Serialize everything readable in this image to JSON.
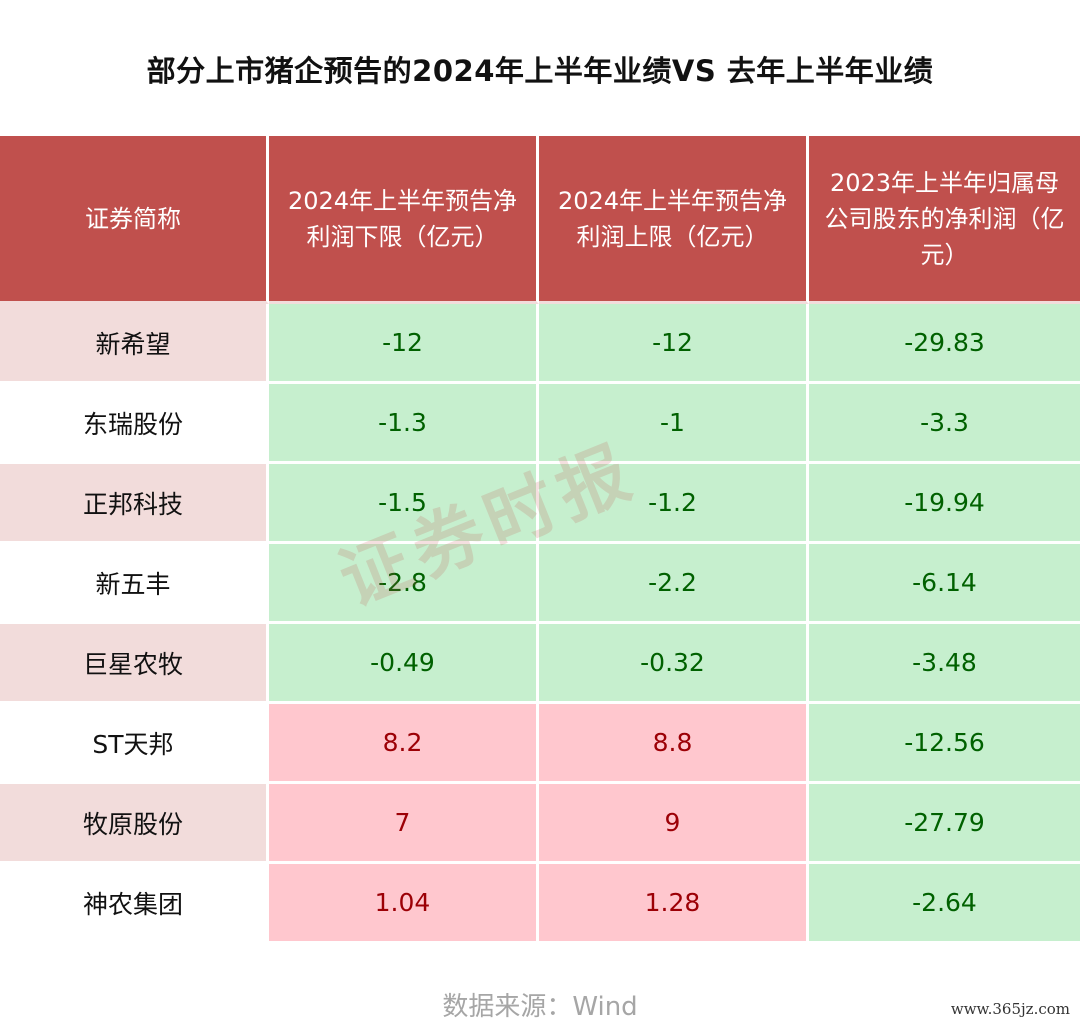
{
  "title": "部分上市猪企预告的2024年上半年业绩VS 去年上半年业绩",
  "table": {
    "headers": [
      "证券简称",
      "2024年上半年预告净利润下限（亿元）",
      "2024年上半年预告净利润上限（亿元）",
      "2023年上半年归属母公司股东的净利润（亿元）"
    ],
    "rows": [
      {
        "name": "新希望",
        "low": "-12",
        "high": "-12",
        "prev": "-29.83"
      },
      {
        "name": "东瑞股份",
        "low": "-1.3",
        "high": "-1",
        "prev": "-3.3"
      },
      {
        "name": "正邦科技",
        "low": "-1.5",
        "high": "-1.2",
        "prev": "-19.94"
      },
      {
        "name": "新五丰",
        "low": "-2.8",
        "high": "-2.2",
        "prev": "-6.14"
      },
      {
        "name": "巨星农牧",
        "low": "-0.49",
        "high": "-0.32",
        "prev": "-3.48"
      },
      {
        "name": "ST天邦",
        "low": "8.2",
        "high": "8.8",
        "prev": "-12.56"
      },
      {
        "name": "牧原股份",
        "low": "7",
        "high": "9",
        "prev": "-27.79"
      },
      {
        "name": "神农集团",
        "low": "1.04",
        "high": "1.28",
        "prev": "-2.64"
      }
    ]
  },
  "source": "数据来源：Wind",
  "watermark": "证券时报",
  "site_mark": "www.365jz.com",
  "colors": {
    "header_bg": "#c0504d",
    "name_shaded_bg": "#f2dcdb",
    "negative_bg": "#c6efce",
    "negative_text": "#006100",
    "positive_bg": "#ffc7ce",
    "positive_text": "#9c0006"
  }
}
